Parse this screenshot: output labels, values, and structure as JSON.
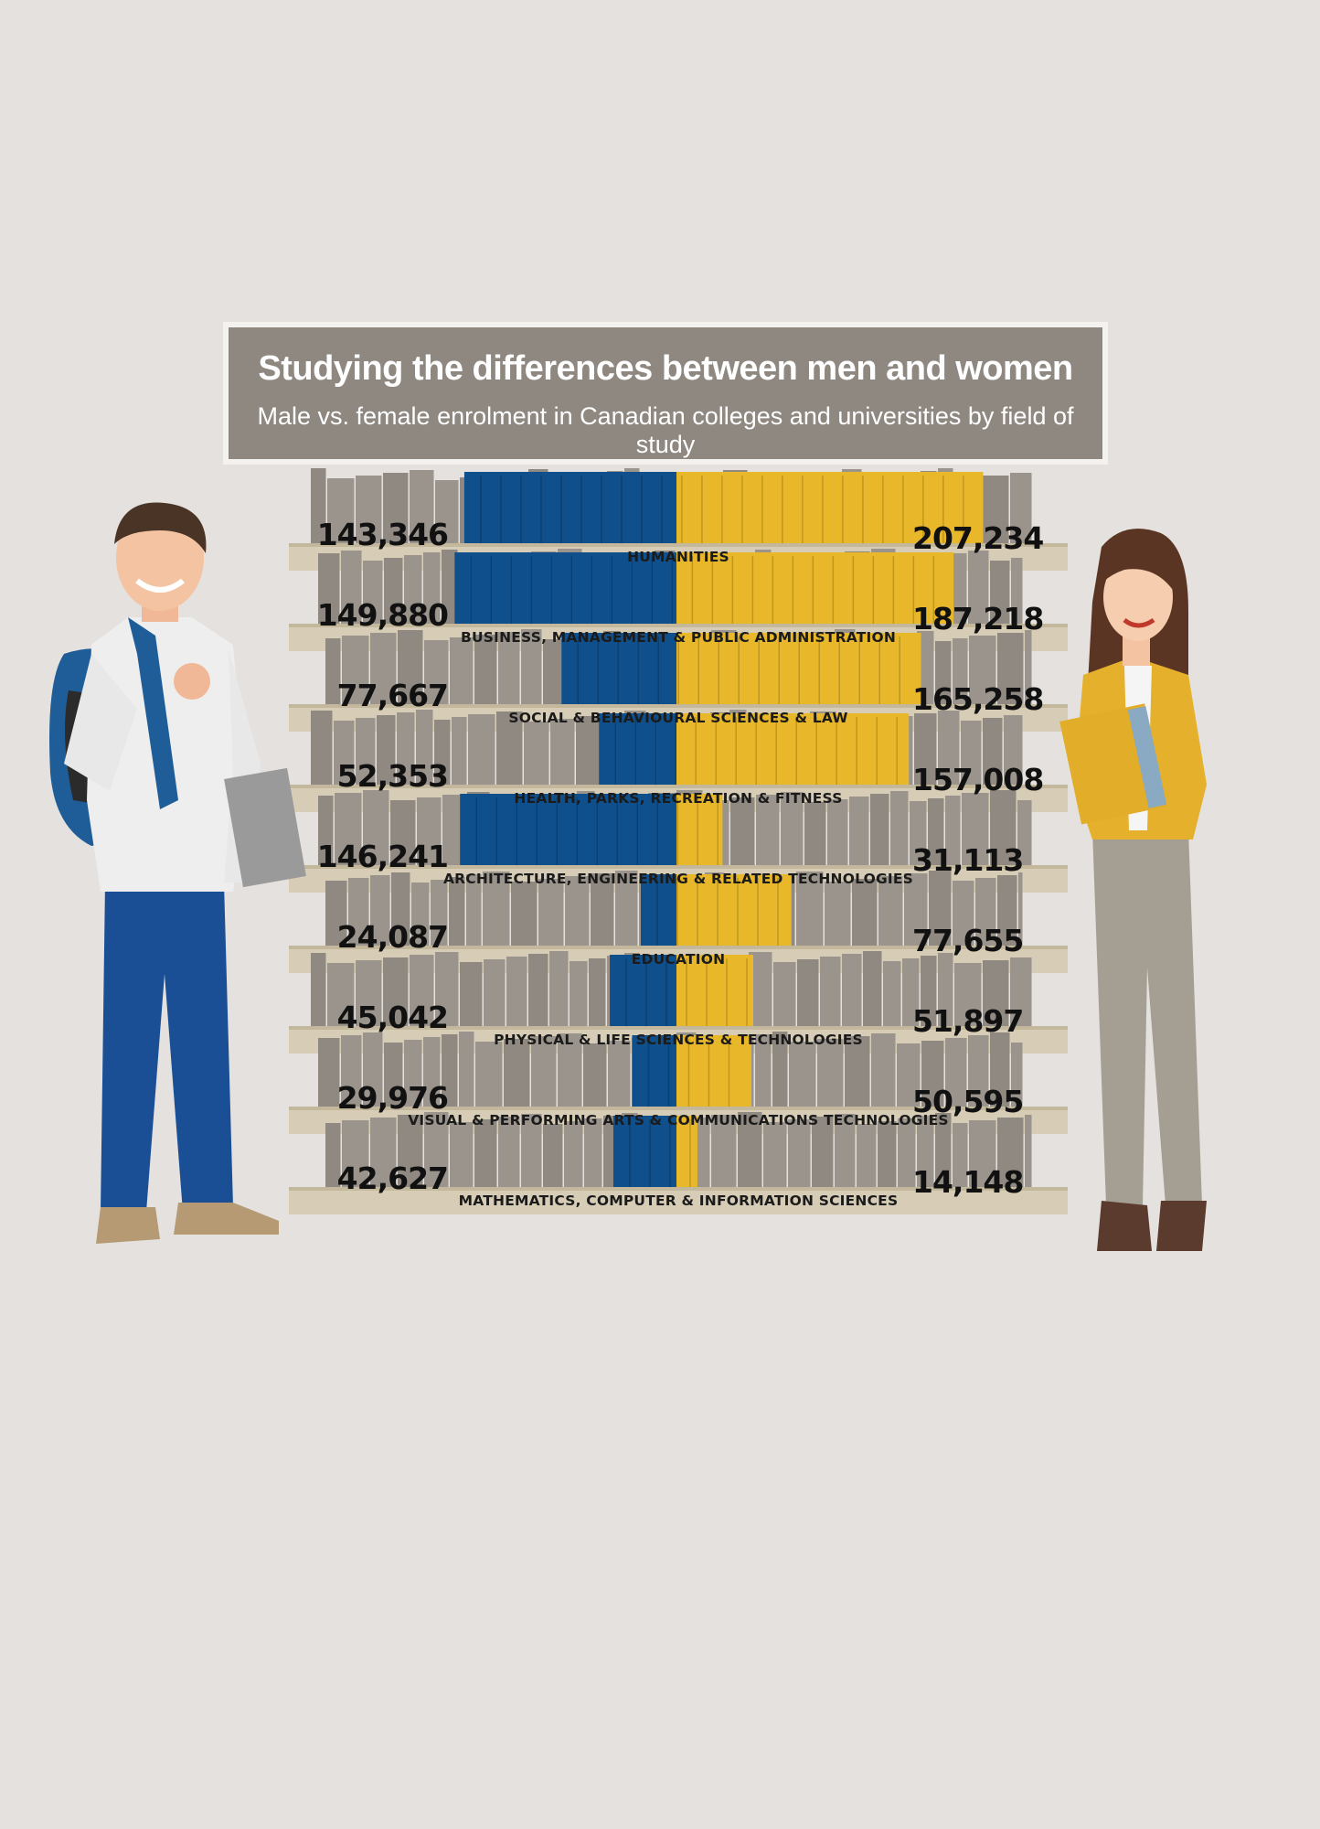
{
  "chart_data": {
    "type": "bar",
    "title": "Studying the differences between men and women",
    "subtitle": "Male vs. female enrolment in Canadian colleges and universities by field of study",
    "categories": [
      "HUMANITIES",
      "BUSINESS, MANAGEMENT & PUBLIC ADMINISTRATION",
      "SOCIAL & BEHAVIOURAL SCIENCES & LAW",
      "HEALTH, PARKS, RECREATION & FITNESS",
      "ARCHITECTURE, ENGINEERING & RELATED TECHNOLOGIES",
      "EDUCATION",
      "PHYSICAL & LIFE SCIENCES & TECHNOLOGIES",
      "VISUAL & PERFORMING ARTS & COMMUNICATIONS TECHNOLOGIES",
      "MATHEMATICS, COMPUTER & INFORMATION SCIENCES"
    ],
    "series": [
      {
        "values": [
          143346,
          149880,
          77667,
          52353,
          146241,
          24087,
          45042,
          29976,
          42627
        ],
        "labels": [
          "143,346",
          "149,880",
          "77,667",
          "52,353",
          "146,241",
          "24,087",
          "45,042",
          "29,976",
          "42,627"
        ],
        "color": "#0f4f8c"
      },
      {
        "values": [
          207234,
          187218,
          165258,
          157008,
          31113,
          77655,
          51897,
          50595,
          14148
        ],
        "labels": [
          "207,234",
          "187,218",
          "165,258",
          "157,008",
          "31,113",
          "77,655",
          "51,897",
          "50,595",
          "14,148"
        ],
        "color": "#e8b72a"
      }
    ],
    "legend": "none",
    "grid": false
  },
  "colors": {
    "male": "#0f4f8c",
    "female": "#e8b72a",
    "shelf": "#d7cdb7",
    "filler_book": "#9a948c",
    "banner": "#8e8880"
  },
  "illustrations": [
    "male-student-icon",
    "female-student-icon",
    "bookshelf-icon"
  ]
}
